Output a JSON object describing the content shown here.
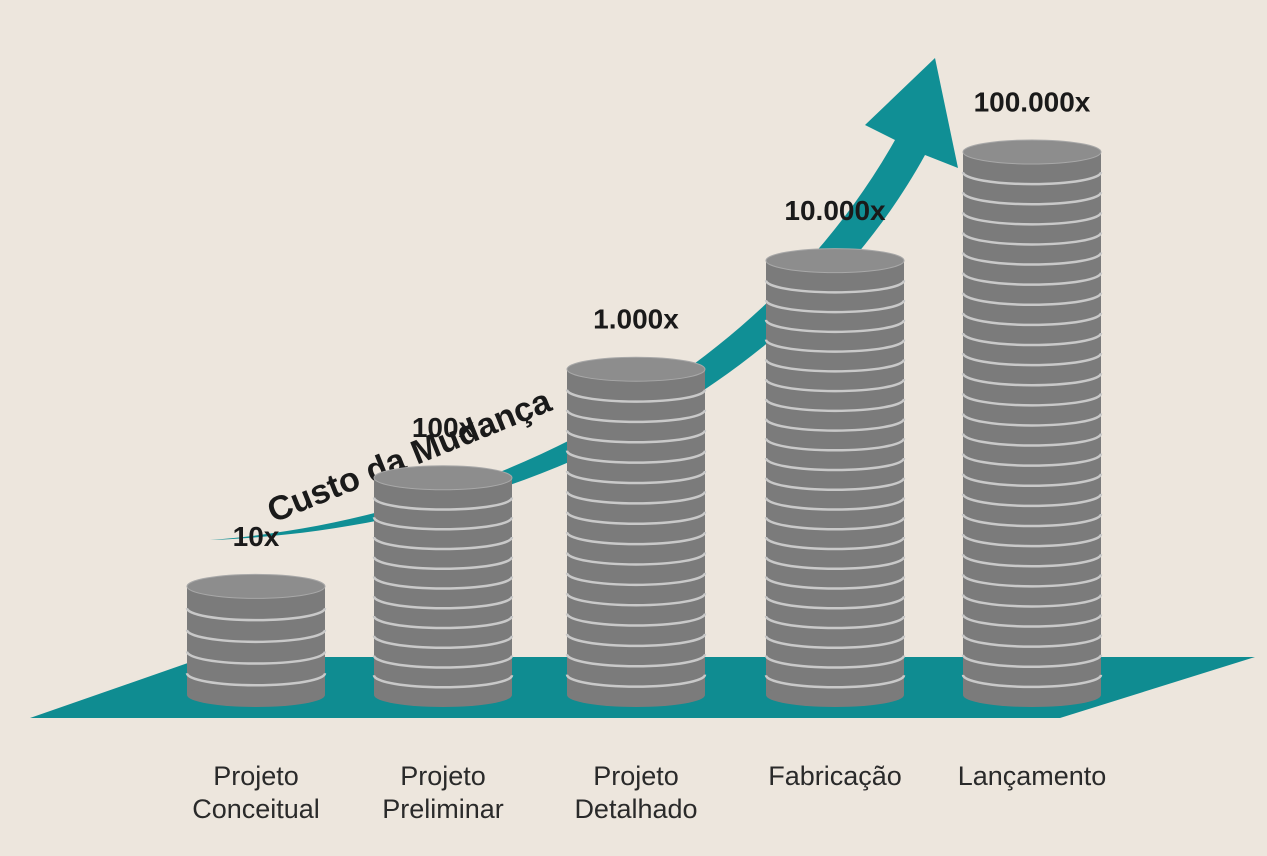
{
  "chart_data": {
    "type": "bar",
    "annotation": "Custo da Mudança",
    "categories": [
      "Projeto Conceitual",
      "Projeto Preliminar",
      "Projeto Detalhado",
      "Fabricação",
      "Lançamento"
    ],
    "values": [
      10,
      100,
      1000,
      10000,
      100000
    ],
    "value_labels": [
      "10x",
      "100x",
      "1.000x",
      "10.000x",
      "100.000x"
    ],
    "color": "#7b7b7b",
    "ylim": [
      1,
      100000
    ],
    "log_scale": true,
    "grid": false
  }
}
